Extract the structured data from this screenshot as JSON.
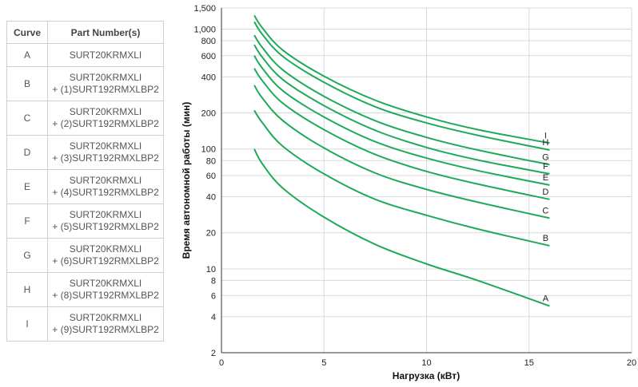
{
  "table": {
    "headers": [
      "Curve",
      "Part Number(s)"
    ],
    "rows": [
      {
        "curve": "A",
        "line1": "SURT20KRMXLI",
        "line2": ""
      },
      {
        "curve": "B",
        "line1": "SURT20KRMXLI",
        "line2": "+ (1)SURT192RMXLBP2"
      },
      {
        "curve": "C",
        "line1": "SURT20KRMXLI",
        "line2": "+ (2)SURT192RMXLBP2"
      },
      {
        "curve": "D",
        "line1": "SURT20KRMXLI",
        "line2": "+ (3)SURT192RMXLBP2"
      },
      {
        "curve": "E",
        "line1": "SURT20KRMXLI",
        "line2": "+ (4)SURT192RMXLBP2"
      },
      {
        "curve": "F",
        "line1": "SURT20KRMXLI",
        "line2": "+ (5)SURT192RMXLBP2"
      },
      {
        "curve": "G",
        "line1": "SURT20KRMXLI",
        "line2": "+ (6)SURT192RMXLBP2"
      },
      {
        "curve": "H",
        "line1": "SURT20KRMXLI",
        "line2": "+ (8)SURT192RMXLBP2"
      },
      {
        "curve": "I",
        "line1": "SURT20KRMXLI",
        "line2": "+ (9)SURT192RMXLBP2"
      }
    ]
  },
  "chart_data": {
    "type": "line",
    "xlabel": "Нагрузка (кВт)",
    "ylabel": "Время автономной работы (мин)",
    "xlim": [
      0,
      20
    ],
    "ylim": [
      2,
      1500
    ],
    "yscale": "log",
    "grid": true,
    "line_color": "#1faa5a",
    "xticks": [
      "0",
      "5",
      "10",
      "15",
      "20"
    ],
    "yticks": [
      {
        "v": 2,
        "label": "2"
      },
      {
        "v": 4,
        "label": "4"
      },
      {
        "v": 6,
        "label": "6"
      },
      {
        "v": 8,
        "label": "8"
      },
      {
        "v": 10,
        "label": "10"
      },
      {
        "v": 20,
        "label": "20"
      },
      {
        "v": 40,
        "label": "40"
      },
      {
        "v": 60,
        "label": "60"
      },
      {
        "v": 80,
        "label": "80"
      },
      {
        "v": 100,
        "label": "100"
      },
      {
        "v": 200,
        "label": "200"
      },
      {
        "v": 400,
        "label": "400"
      },
      {
        "v": 600,
        "label": "600"
      },
      {
        "v": 800,
        "label": "800"
      },
      {
        "v": 1000,
        "label": "1,000"
      },
      {
        "v": 1500,
        "label": "1,500"
      }
    ],
    "x": [
      1.6,
      2,
      3,
      5,
      7.5,
      10,
      12.5,
      16
    ],
    "series": [
      {
        "name": "A",
        "values": [
          100,
          75,
          47,
          27,
          16,
          11,
          8,
          4.9
        ]
      },
      {
        "name": "B",
        "values": [
          210,
          165,
          105,
          62,
          38,
          28,
          21.5,
          15.6
        ]
      },
      {
        "name": "C",
        "values": [
          340,
          265,
          172,
          102,
          63,
          46,
          36,
          26.5
        ]
      },
      {
        "name": "D",
        "values": [
          470,
          370,
          240,
          145,
          90,
          65,
          51,
          38
        ]
      },
      {
        "name": "E",
        "values": [
          600,
          470,
          305,
          185,
          115,
          84,
          66,
          50
        ]
      },
      {
        "name": "F",
        "values": [
          740,
          580,
          378,
          230,
          143,
          103,
          81,
          62
        ]
      },
      {
        "name": "G",
        "values": [
          890,
          700,
          455,
          275,
          172,
          125,
          98,
          74
        ]
      },
      {
        "name": "H",
        "values": [
          1150,
          900,
          590,
          360,
          225,
          165,
          130,
          98
        ]
      },
      {
        "name": "I",
        "values": [
          1300,
          1020,
          665,
          405,
          255,
          185,
          145,
          112
        ]
      }
    ]
  }
}
